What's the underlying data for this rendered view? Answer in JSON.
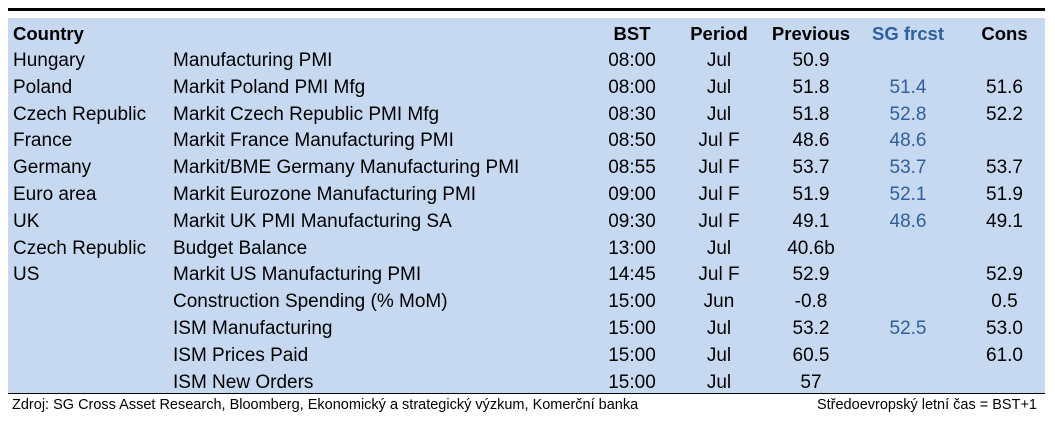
{
  "table": {
    "headers": {
      "country": "Country",
      "indicator": "",
      "bst": "BST",
      "period": "Period",
      "previous": "Previous",
      "sg_forecast": "SG frcst",
      "consensus": "Cons"
    },
    "rows": [
      {
        "country": "Hungary",
        "indicator": "Manufacturing PMI",
        "bst": "08:00",
        "period": "Jul",
        "previous": "50.9",
        "sg_forecast": "",
        "consensus": ""
      },
      {
        "country": "Poland",
        "indicator": "Markit Poland PMI Mfg",
        "bst": "08:00",
        "period": "Jul",
        "previous": "51.8",
        "sg_forecast": "51.4",
        "consensus": "51.6"
      },
      {
        "country": "Czech Republic",
        "indicator": "Markit Czech Republic PMI Mfg",
        "bst": "08:30",
        "period": "Jul",
        "previous": "51.8",
        "sg_forecast": "52.8",
        "consensus": "52.2"
      },
      {
        "country": "France",
        "indicator": "Markit France Manufacturing PMI",
        "bst": "08:50",
        "period": "Jul F",
        "previous": "48.6",
        "sg_forecast": "48.6",
        "consensus": ""
      },
      {
        "country": "Germany",
        "indicator": "Markit/BME Germany Manufacturing PMI",
        "bst": "08:55",
        "period": "Jul F",
        "previous": "53.7",
        "sg_forecast": "53.7",
        "consensus": "53.7"
      },
      {
        "country": "Euro area",
        "indicator": "Markit Eurozone Manufacturing PMI",
        "bst": "09:00",
        "period": "Jul F",
        "previous": "51.9",
        "sg_forecast": "52.1",
        "consensus": "51.9"
      },
      {
        "country": "UK",
        "indicator": "Markit UK PMI Manufacturing SA",
        "bst": "09:30",
        "period": "Jul F",
        "previous": "49.1",
        "sg_forecast": "48.6",
        "consensus": "49.1"
      },
      {
        "country": "Czech Republic",
        "indicator": "Budget Balance",
        "bst": "13:00",
        "period": "Jul",
        "previous": "40.6b",
        "sg_forecast": "",
        "consensus": ""
      },
      {
        "country": "US",
        "indicator": "Markit US Manufacturing PMI",
        "bst": "14:45",
        "period": "Jul F",
        "previous": "52.9",
        "sg_forecast": "",
        "consensus": "52.9"
      },
      {
        "country": "",
        "indicator": "Construction Spending (% MoM)",
        "bst": "15:00",
        "period": "Jun",
        "previous": "-0.8",
        "sg_forecast": "",
        "consensus": "0.5"
      },
      {
        "country": "",
        "indicator": "ISM Manufacturing",
        "bst": "15:00",
        "period": "Jul",
        "previous": "53.2",
        "sg_forecast": "52.5",
        "consensus": "53.0"
      },
      {
        "country": "",
        "indicator": "ISM Prices Paid",
        "bst": "15:00",
        "period": "Jul",
        "previous": "60.5",
        "sg_forecast": "",
        "consensus": "61.0"
      },
      {
        "country": "",
        "indicator": "ISM New Orders",
        "bst": "15:00",
        "period": "Jul",
        "previous": "57",
        "sg_forecast": "",
        "consensus": ""
      }
    ]
  },
  "footer": {
    "source": "Zdroj: SG Cross Asset Research, Bloomberg, Ekonomický a strategický výzkum, Komerční banka",
    "timezone_note": "Středoevropský letní čas = BST+1"
  },
  "colors": {
    "panel_background": "#c6d9f0",
    "sg_forecast_text": "#2f5f9e"
  }
}
